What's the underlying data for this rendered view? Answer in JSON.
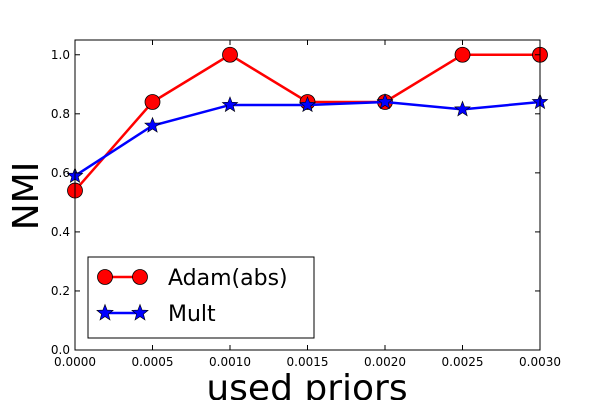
{
  "chart_data": {
    "type": "line",
    "xlabel": "used priors",
    "ylabel": "NMI",
    "xlim": [
      0.0,
      0.003
    ],
    "ylim": [
      0.0,
      1.05
    ],
    "x_ticks": [
      "0.0000",
      "0.0005",
      "0.0010",
      "0.0015",
      "0.0020",
      "0.0025",
      "0.0030"
    ],
    "y_ticks": [
      "0.0",
      "0.2",
      "0.4",
      "0.6",
      "0.8",
      "1.0"
    ],
    "x": [
      0.0,
      0.0005,
      0.001,
      0.0015,
      0.002,
      0.0025,
      0.003
    ],
    "series": [
      {
        "name": "Adam(abs)",
        "color": "#ff0000",
        "marker": "circle",
        "values": [
          0.54,
          0.84,
          1.0,
          0.84,
          0.84,
          1.0,
          1.0
        ]
      },
      {
        "name": "Mult",
        "color": "#0000ff",
        "marker": "star",
        "values": [
          0.59,
          0.76,
          0.83,
          0.83,
          0.84,
          0.815,
          0.84
        ]
      }
    ],
    "legend": "lower-left",
    "grid": false
  }
}
